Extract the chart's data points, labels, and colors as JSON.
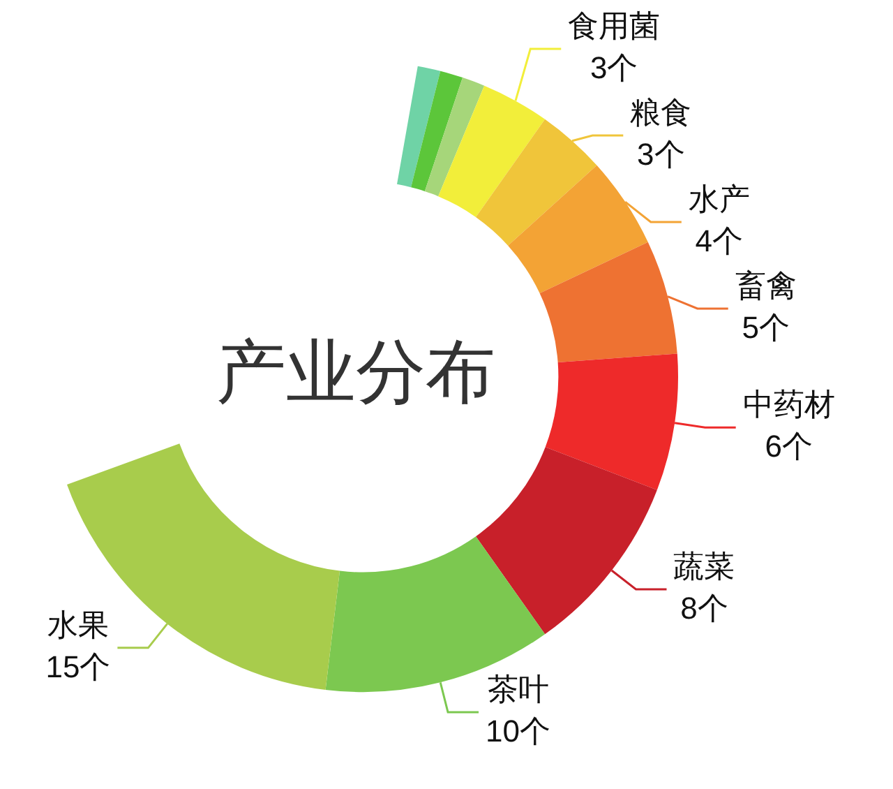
{
  "chart_data": {
    "type": "donut",
    "title": "产业分布",
    "categories": [
      null,
      null,
      null,
      "食用菌",
      "粮食",
      "水产",
      "畜禽",
      "中药材",
      "蔬菜",
      "茶叶",
      "水果"
    ],
    "values": [
      1,
      1,
      1,
      3,
      3,
      4,
      5,
      6,
      8,
      10,
      15
    ],
    "value_labels": [
      null,
      null,
      null,
      "3个",
      "3个",
      "4个",
      "5个",
      "6个",
      "8个",
      "10个",
      "15个"
    ],
    "colors": [
      "#6fd3a6",
      "#5cc63a",
      "#a6d67a",
      "#f2ee3a",
      "#f0c53a",
      "#f3a335",
      "#ee7232",
      "#ee2a2a",
      "#c8202a",
      "#7cc850",
      "#a8cc4c"
    ]
  }
}
